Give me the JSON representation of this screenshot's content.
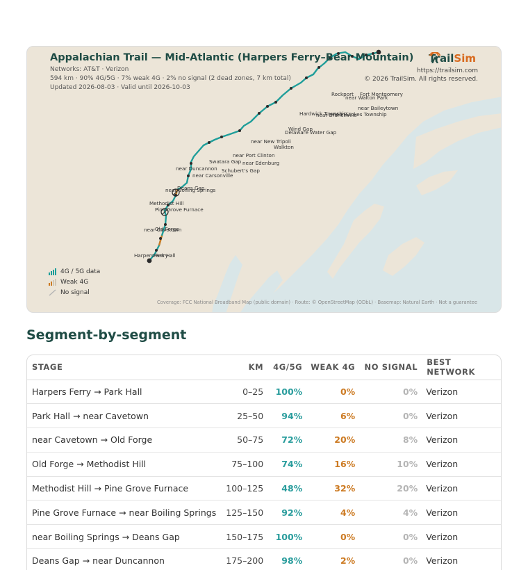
{
  "map": {
    "title": "Appalachian Trail — Mid-Atlantic (Harpers Ferry–Bear Mountain)",
    "networks": "Networks: AT&T · Verizon",
    "summary": "594 km · 90% 4G/5G · 7% weak 4G · 2% no signal (2 dead zones, 7 km total)",
    "updated": "Updated 2026-08-03 · Valid until 2026-10-03",
    "brand": {
      "name_a": "Trail",
      "name_b": "Sim",
      "url": "https://trailsim.com",
      "copyright": "© 2026 TrailSim. All rights reserved."
    },
    "legend": [
      {
        "label": "4G / 5G data",
        "icon": "signal-bars-full-icon"
      },
      {
        "label": "Weak 4G",
        "icon": "signal-bars-weak-icon"
      },
      {
        "label": "No signal",
        "icon": "no-signal-icon"
      }
    ],
    "credits": "Coverage: FCC National Broadband Map (public domain) · Route: © OpenStreetMap (ODbL) · Basemap: Natural Earth · Not a guarantee",
    "places": [
      "Harpers Ferry",
      "Park Hall",
      "near Cavetown",
      "Old Forge",
      "Methodist Hill",
      "Pine Grove Furnace",
      "near Boiling Springs",
      "Deans Gap",
      "near Duncannon",
      "near Carsonville",
      "Swatara Gap",
      "Schubert's Gap",
      "near Edenburg",
      "near Port Clinton",
      "Walkton",
      "near New Tripoli",
      "Delaware Water Gap",
      "Wind Gap",
      "Hardwick Township",
      "near Branchville",
      "near Stokes Township",
      "Rockport",
      "near Baileytown",
      "Fort Montgomery",
      "near Walton Park"
    ],
    "colors": {
      "route": "#1f9e9a",
      "land": "#ece5d8",
      "water": "#d9e6e8",
      "brand": "#1f4c45",
      "accent": "#d86a1e"
    }
  },
  "section_title": "Segment-by-segment",
  "table": {
    "headers": [
      "STAGE",
      "KM",
      "4G/5G",
      "WEAK 4G",
      "NO SIGNAL",
      "BEST NETWORK"
    ],
    "rows": [
      {
        "stage": "Harpers Ferry → Park Hall",
        "km": "0–25",
        "good": "100%",
        "weak": "0%",
        "none": "0%",
        "net": "Verizon"
      },
      {
        "stage": "Park Hall → near Cavetown",
        "km": "25–50",
        "good": "94%",
        "weak": "6%",
        "none": "0%",
        "net": "Verizon"
      },
      {
        "stage": "near Cavetown → Old Forge",
        "km": "50–75",
        "good": "72%",
        "weak": "20%",
        "none": "8%",
        "net": "Verizon"
      },
      {
        "stage": "Old Forge → Methodist Hill",
        "km": "75–100",
        "good": "74%",
        "weak": "16%",
        "none": "10%",
        "net": "Verizon"
      },
      {
        "stage": "Methodist Hill → Pine Grove Furnace",
        "km": "100–125",
        "good": "48%",
        "weak": "32%",
        "none": "20%",
        "net": "Verizon"
      },
      {
        "stage": "Pine Grove Furnace → near Boiling Springs",
        "km": "125–150",
        "good": "92%",
        "weak": "4%",
        "none": "4%",
        "net": "Verizon"
      },
      {
        "stage": "near Boiling Springs → Deans Gap",
        "km": "150–175",
        "good": "100%",
        "weak": "0%",
        "none": "0%",
        "net": "Verizon"
      },
      {
        "stage": "Deans Gap → near Duncannon",
        "km": "175–200",
        "good": "98%",
        "weak": "2%",
        "none": "0%",
        "net": "Verizon"
      }
    ]
  }
}
